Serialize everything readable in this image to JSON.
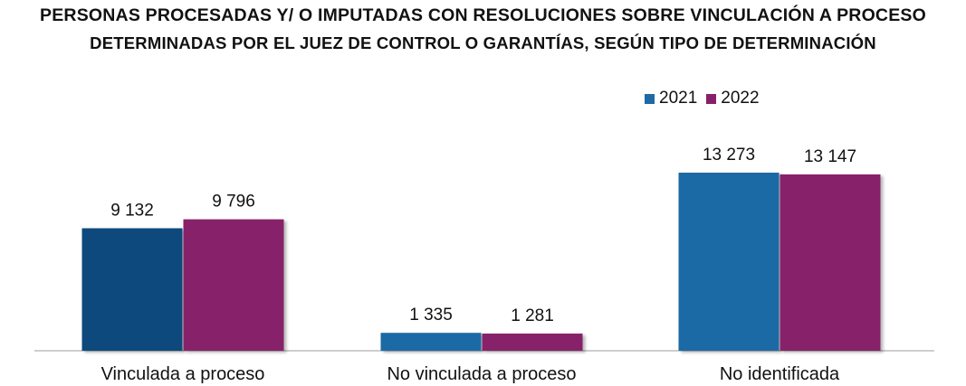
{
  "chart_data": {
    "type": "bar",
    "title": "PERSONAS PROCESADAS Y/ O IMPUTADAS CON RESOLUCIONES SOBRE VINCULACIÓN A PROCESO",
    "subtitle": "DETERMINADAS POR EL JUEZ DE CONTROL O GARANTÍAS, SEGÚN TIPO DE DETERMINACIÓN",
    "categories": [
      "Vinculada a proceso",
      "No vinculada a proceso",
      "No identificada"
    ],
    "series": [
      {
        "name": "2021",
        "color": "#1f6aa5",
        "values": [
          9132,
          1335,
          13273
        ],
        "labels": [
          "9 132",
          "1 335",
          "13 273"
        ]
      },
      {
        "name": "2022",
        "color": "#87206b",
        "values": [
          9796,
          1281,
          13147
        ],
        "labels": [
          "9 796",
          "1 281",
          "13 147"
        ]
      }
    ],
    "first_bar_color": "#0b4a7c",
    "ylim": [
      0,
      13273
    ],
    "legend_position": "top-right",
    "grid": false
  }
}
